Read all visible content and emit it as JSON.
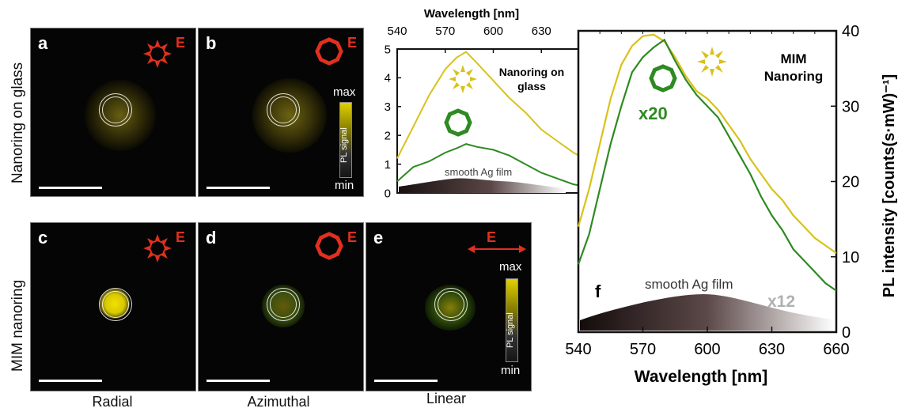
{
  "figure": {
    "row_labels": {
      "top": "Nanoring on glass",
      "bottom": "MIM nanoring"
    },
    "column_labels": [
      "Radial",
      "Azimuthal",
      "Linear"
    ],
    "panels": {
      "a": {
        "letter": "a",
        "e_label": "E"
      },
      "b": {
        "letter": "b",
        "e_label": "E",
        "colorbar_max": "max",
        "colorbar_min": "min",
        "colorbar_label": "PL signal"
      },
      "c": {
        "letter": "c",
        "e_label": "E"
      },
      "d": {
        "letter": "d",
        "e_label": "E"
      },
      "e": {
        "letter": "e",
        "e_label": "E",
        "colorbar_max": "max",
        "colorbar_min": "min",
        "colorbar_label": "PL signal"
      }
    },
    "colors": {
      "yellow_spectrum": "#d8c21a",
      "green_spectrum": "#2e8a22",
      "polarization_icon": "#e0301e",
      "ag_film_dark": "#2b1d1d"
    }
  },
  "chart_data": [
    {
      "type": "line",
      "title": "Nanoring on glass",
      "xlabel": "Wavelength [nm]",
      "xlim": [
        540,
        660
      ],
      "ylim": [
        0,
        5
      ],
      "x_ticks": [
        "540",
        "570",
        "600",
        "630"
      ],
      "y_ticks": [
        "0",
        "1",
        "2",
        "3",
        "4",
        "5"
      ],
      "x": [
        540,
        550,
        560,
        570,
        577,
        583,
        590,
        600,
        610,
        620,
        630,
        640,
        650,
        660
      ],
      "series": [
        {
          "name": "radial",
          "values": [
            1.2,
            2.3,
            3.4,
            4.3,
            4.7,
            4.9,
            4.5,
            3.9,
            3.3,
            2.8,
            2.2,
            1.8,
            1.4,
            1.1
          ]
        },
        {
          "name": "azimuthal",
          "values": [
            0.4,
            0.9,
            1.1,
            1.4,
            1.55,
            1.7,
            1.6,
            1.5,
            1.3,
            1.0,
            0.7,
            0.5,
            0.3,
            0.2
          ]
        }
      ],
      "annotation": "smooth Ag film"
    },
    {
      "type": "line",
      "title": "MIM Nanoring",
      "panel_letter": "f",
      "xlabel": "Wavelength [nm]",
      "ylabel": "PL intensity [counts(s·mW)⁻¹]",
      "xlim": [
        540,
        660
      ],
      "ylim": [
        0,
        40
      ],
      "x_ticks": [
        "540",
        "570",
        "600",
        "630",
        "660"
      ],
      "y_ticks": [
        "0",
        "10",
        "20",
        "30",
        "40"
      ],
      "x": [
        540,
        545,
        550,
        555,
        560,
        565,
        570,
        575,
        580,
        585,
        590,
        595,
        600,
        605,
        610,
        615,
        620,
        625,
        630,
        635,
        640,
        645,
        650,
        655,
        660
      ],
      "series": [
        {
          "name": "radial",
          "values": [
            14,
            19,
            25,
            31,
            35.5,
            38,
            39.3,
            39.5,
            38.6,
            36.5,
            34,
            32,
            31,
            29.5,
            27.5,
            25.5,
            23,
            21,
            19,
            17.5,
            15.5,
            14,
            12.5,
            11.5,
            10.5
          ]
        },
        {
          "name": "azimuthal x20",
          "values": [
            9,
            13,
            19,
            25,
            30,
            34.5,
            36.5,
            37.8,
            38.8,
            36,
            33.5,
            31.5,
            30,
            28.5,
            26,
            23.5,
            21,
            18,
            15.5,
            13.5,
            11,
            9.5,
            8,
            6.5,
            5.5
          ]
        }
      ],
      "annotations": {
        "x20": "x20",
        "x12": "x12",
        "ag_film": "smooth Ag film"
      }
    }
  ]
}
